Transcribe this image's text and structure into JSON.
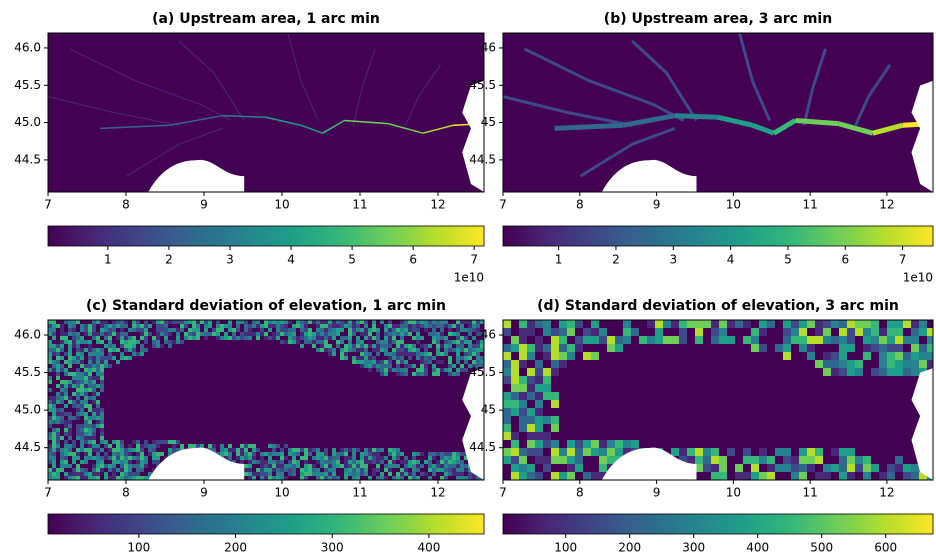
{
  "chart_data": [
    {
      "type": "heatmap",
      "title": "(a) Upstream area, 1 arc min",
      "xlim": [
        7,
        12.59
      ],
      "ylim": [
        44.07,
        46.2
      ],
      "xticks": [
        7,
        8,
        9,
        10,
        11,
        12
      ],
      "yticks": [
        {
          "value": 44.5,
          "label": "44.5"
        },
        {
          "value": 45,
          "label": "45.0"
        },
        {
          "value": 45.5,
          "label": "45.5"
        },
        {
          "value": 46,
          "label": "46.0"
        }
      ],
      "colormap": "viridis",
      "colorbar": {
        "lim": [
          0.02,
          7.16
        ],
        "ticks": [
          1,
          2,
          3,
          4,
          5,
          6,
          7
        ],
        "offset_label": "1e10"
      }
    },
    {
      "type": "heatmap",
      "title": "(b) Upstream area, 3 arc min",
      "xlim": [
        7,
        12.6
      ],
      "ylim": [
        44.07,
        46.2
      ],
      "xticks": [
        7,
        8,
        9,
        10,
        11,
        12
      ],
      "yticks": [
        44.5,
        45,
        45.5,
        46
      ],
      "colormap": "viridis",
      "colorbar": {
        "lim": [
          0.03,
          7.53
        ],
        "ticks": [
          1,
          2,
          3,
          4,
          5,
          6,
          7
        ],
        "offset_label": "1e10"
      }
    },
    {
      "type": "heatmap",
      "title": "(c) Standard deviation of elevation, 1 arc min",
      "xlim": [
        7,
        12.59
      ],
      "ylim": [
        44.07,
        46.2
      ],
      "xticks": [
        7,
        8,
        9,
        10,
        11,
        12
      ],
      "yticks": [
        {
          "value": 44.5,
          "label": "44.5"
        },
        {
          "value": 45,
          "label": "45.0"
        },
        {
          "value": 45.5,
          "label": "45.5"
        },
        {
          "value": 46,
          "label": "46.0"
        }
      ],
      "colormap": "viridis",
      "colorbar": {
        "lim": [
          6,
          457
        ],
        "ticks": [
          100,
          200,
          300,
          400
        ]
      }
    },
    {
      "type": "heatmap",
      "title": "(d) Standard deviation of elevation, 3 arc min",
      "xlim": [
        7,
        12.6
      ],
      "ylim": [
        44.07,
        46.2
      ],
      "xticks": [
        7,
        8,
        9,
        10,
        11,
        12
      ],
      "yticks": [
        44.5,
        45,
        45.5,
        46
      ],
      "colormap": "viridis",
      "colorbar": {
        "lim": [
          2,
          674
        ],
        "ticks": [
          100,
          200,
          300,
          400,
          500,
          600
        ]
      }
    }
  ]
}
